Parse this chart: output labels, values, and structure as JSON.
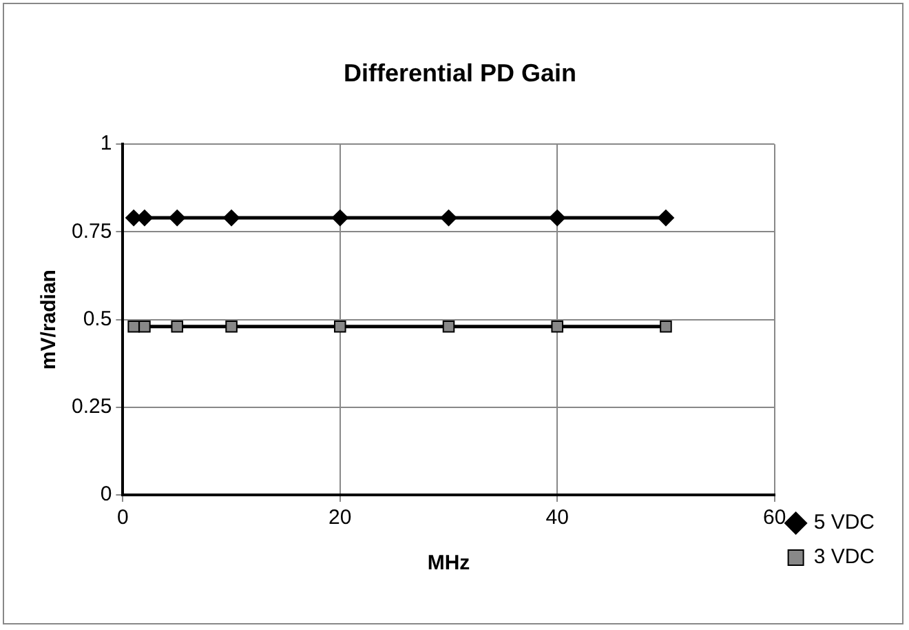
{
  "chart_data": {
    "type": "line",
    "title": "Differential PD Gain",
    "xlabel": "MHz",
    "ylabel": "mV/radian",
    "x": [
      1,
      2,
      5,
      10,
      20,
      30,
      40,
      50
    ],
    "series": [
      {
        "name": "5 VDC",
        "color": "#000000",
        "marker": "diamond",
        "values": [
          0.79,
          0.79,
          0.79,
          0.79,
          0.79,
          0.79,
          0.79,
          0.79
        ]
      },
      {
        "name": "3 VDC",
        "color": "#000000",
        "marker": "square",
        "values": [
          0.48,
          0.48,
          0.48,
          0.48,
          0.48,
          0.48,
          0.48,
          0.48
        ]
      }
    ],
    "xlim": [
      0,
      60
    ],
    "xticks": [
      0,
      20,
      40,
      60
    ],
    "ylim": [
      0,
      1
    ],
    "yticks": [
      0,
      0.25,
      0.5,
      0.75,
      1
    ],
    "grid": true,
    "legend": "right"
  }
}
